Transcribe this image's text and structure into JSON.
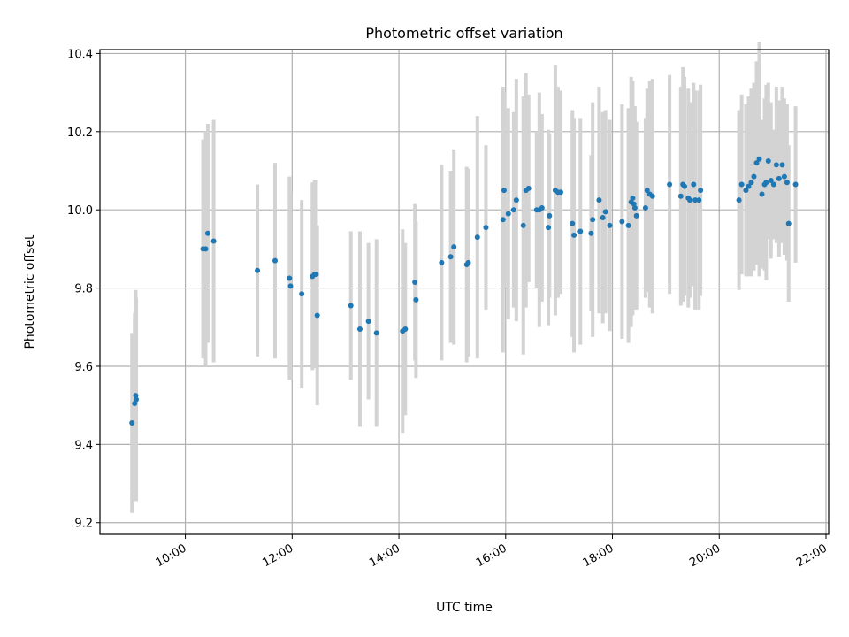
{
  "chart_data": {
    "type": "scatter",
    "title": "Photometric offset variation",
    "xlabel": "UTC time",
    "ylabel": "Photometric offset",
    "x_tick_labels": [
      "10:00",
      "12:00",
      "14:00",
      "16:00",
      "18:00",
      "20:00",
      "22:00"
    ],
    "x_tick_hours": [
      10,
      12,
      14,
      16,
      18,
      20,
      22
    ],
    "y_ticks": [
      9.2,
      9.4,
      9.6,
      9.8,
      10.0,
      10.2,
      10.4
    ],
    "y_tick_labels": [
      "9.2",
      "9.4",
      "9.6",
      "9.8",
      "10.0",
      "10.2",
      "10.4"
    ],
    "xlim_hours": [
      8.4,
      22.05
    ],
    "ylim": [
      9.17,
      10.41
    ],
    "grid": true,
    "colors": {
      "point": "#1f77b4",
      "errorbar": "#d3d3d3"
    },
    "series": [
      {
        "x_hours": [
          9.0,
          9.05,
          9.07,
          9.08,
          10.33,
          10.38,
          10.42,
          10.53,
          11.35,
          11.68,
          11.95,
          11.97,
          12.18,
          12.38,
          12.42,
          12.45,
          12.47,
          13.1,
          13.27,
          13.43,
          13.58,
          14.07,
          14.12,
          14.3,
          14.32,
          14.8,
          14.97,
          15.03,
          15.27,
          15.3,
          15.47,
          15.63,
          15.95,
          15.97,
          16.05,
          16.15,
          16.2,
          16.33,
          16.38,
          16.43,
          16.58,
          16.63,
          16.68,
          16.8,
          16.82,
          16.93,
          16.98,
          17.03,
          17.25,
          17.28,
          17.4,
          17.6,
          17.63,
          17.75,
          17.82,
          17.87,
          17.95,
          18.18,
          18.3,
          18.35,
          18.38,
          18.4,
          18.42,
          18.45,
          18.62,
          18.65,
          18.7,
          18.75,
          19.07,
          19.28,
          19.32,
          19.35,
          19.42,
          19.45,
          19.52,
          19.55,
          19.62,
          19.65,
          20.37,
          20.42,
          20.5,
          20.55,
          20.6,
          20.65,
          20.7,
          20.75,
          20.8,
          20.85,
          20.88,
          20.92,
          20.97,
          21.02,
          21.07,
          21.12,
          21.18,
          21.22,
          21.27,
          21.3,
          21.43
        ],
        "y": [
          9.455,
          9.505,
          9.525,
          9.515,
          9.9,
          9.9,
          9.94,
          9.92,
          9.845,
          9.87,
          9.825,
          9.805,
          9.785,
          9.83,
          9.835,
          9.835,
          9.73,
          9.755,
          9.695,
          9.715,
          9.685,
          9.69,
          9.695,
          9.815,
          9.77,
          9.865,
          9.88,
          9.905,
          9.86,
          9.865,
          9.93,
          9.955,
          9.975,
          10.05,
          9.99,
          10.0,
          10.025,
          9.96,
          10.05,
          10.055,
          10.0,
          10.0,
          10.005,
          9.955,
          9.985,
          10.05,
          10.045,
          10.045,
          9.965,
          9.935,
          9.945,
          9.94,
          9.975,
          10.025,
          9.98,
          9.995,
          9.96,
          9.97,
          9.96,
          10.02,
          10.03,
          10.015,
          10.005,
          9.985,
          10.005,
          10.05,
          10.04,
          10.035,
          10.065,
          10.035,
          10.065,
          10.06,
          10.03,
          10.025,
          10.065,
          10.025,
          10.025,
          10.05,
          10.025,
          10.065,
          10.05,
          10.06,
          10.07,
          10.085,
          10.12,
          10.13,
          10.04,
          10.065,
          10.07,
          10.125,
          10.075,
          10.065,
          10.115,
          10.08,
          10.115,
          10.085,
          10.07,
          9.965,
          10.065
        ],
        "yerr": [
          0.23,
          0.23,
          0.27,
          0.26,
          0.28,
          0.3,
          0.28,
          0.31,
          0.22,
          0.25,
          0.26,
          0.24,
          0.24,
          0.24,
          0.24,
          0.24,
          0.23,
          0.19,
          0.25,
          0.2,
          0.24,
          0.26,
          0.22,
          0.2,
          0.2,
          0.25,
          0.22,
          0.25,
          0.25,
          0.24,
          0.31,
          0.21,
          0.34,
          0.25,
          0.27,
          0.25,
          0.31,
          0.33,
          0.3,
          0.24,
          0.2,
          0.3,
          0.24,
          0.25,
          0.21,
          0.32,
          0.27,
          0.26,
          0.29,
          0.3,
          0.29,
          0.2,
          0.3,
          0.29,
          0.27,
          0.26,
          0.27,
          0.3,
          0.3,
          0.32,
          0.3,
          0.25,
          0.26,
          0.24,
          0.23,
          0.26,
          0.29,
          0.3,
          0.28,
          0.28,
          0.3,
          0.28,
          0.28,
          0.25,
          0.26,
          0.28,
          0.28,
          0.27,
          0.23,
          0.23,
          0.22,
          0.23,
          0.24,
          0.24,
          0.26,
          0.3,
          0.19,
          0.22,
          0.25,
          0.2,
          0.2,
          0.14,
          0.2,
          0.2,
          0.2,
          0.2,
          0.2,
          0.2,
          0.2
        ]
      }
    ]
  }
}
